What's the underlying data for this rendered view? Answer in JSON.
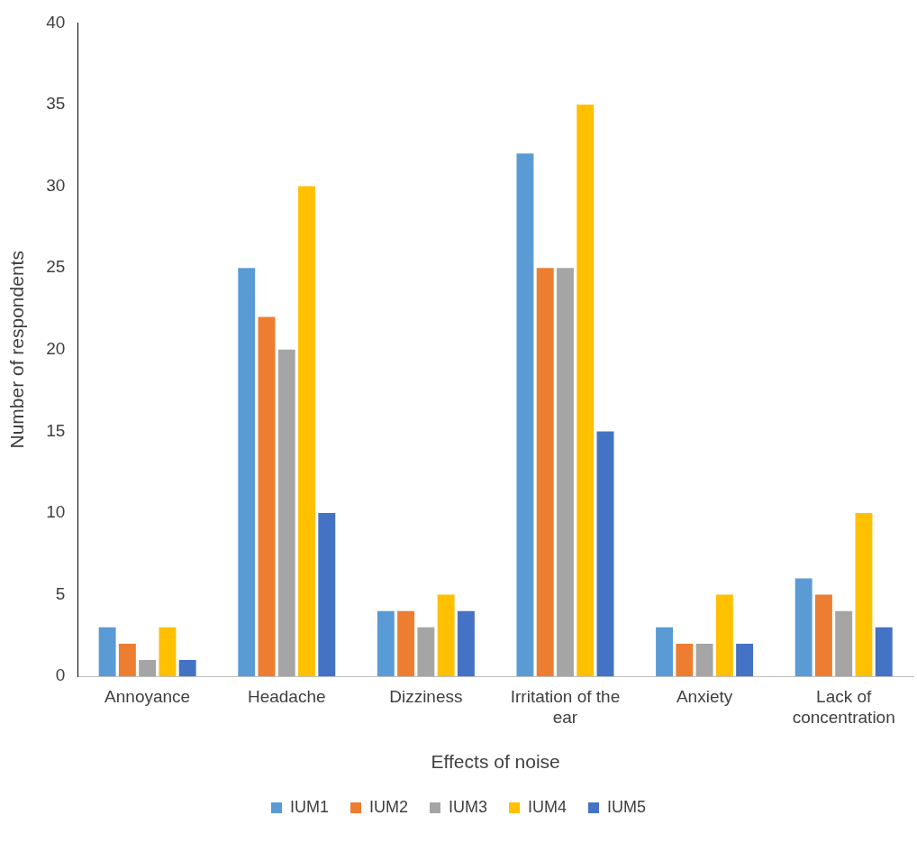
{
  "chart_data": {
    "type": "bar",
    "xlabel": "Effects of noise",
    "ylabel": "Number of respondents",
    "categories": [
      "Annoyance",
      "Headache",
      "Dizziness",
      "Irritation of the ear",
      "Anxiety",
      "Lack of concentration"
    ],
    "series": [
      {
        "name": "IUM1",
        "color": "#5b9bd5",
        "values": [
          3,
          25,
          4,
          32,
          3,
          6
        ]
      },
      {
        "name": "IUM2",
        "color": "#ed7d31",
        "values": [
          2,
          22,
          4,
          25,
          2,
          5
        ]
      },
      {
        "name": "IUM3",
        "color": "#a5a5a5",
        "values": [
          1,
          20,
          3,
          25,
          2,
          4
        ]
      },
      {
        "name": "IUM4",
        "color": "#ffc000",
        "values": [
          3,
          30,
          5,
          35,
          5,
          10
        ]
      },
      {
        "name": "IUM5",
        "color": "#4472c4",
        "values": [
          1,
          10,
          4,
          15,
          2,
          3
        ]
      }
    ],
    "ylim": [
      0,
      40
    ],
    "yticks": [
      0,
      5,
      10,
      15,
      20,
      25,
      30,
      35,
      40
    ],
    "grid": false,
    "legend": "bottom"
  }
}
